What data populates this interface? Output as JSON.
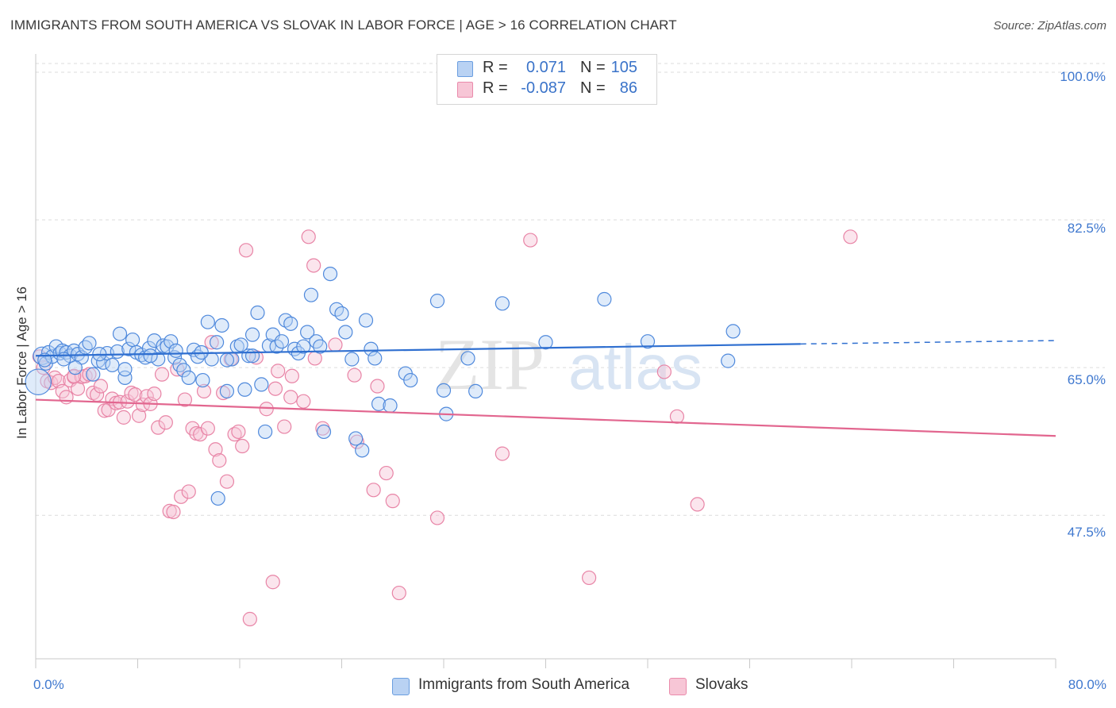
{
  "title": "IMMIGRANTS FROM SOUTH AMERICA VS SLOVAK IN LABOR FORCE | AGE > 16 CORRELATION CHART",
  "source": "Source: ZipAtlas.com",
  "watermark": {
    "zip": "ZIP",
    "atlas": "atlas"
  },
  "legend_top": {
    "series1": {
      "r_label": "R =",
      "r_value": "0.071",
      "n_label": "N =",
      "n_value": "105"
    },
    "series2": {
      "r_label": "R =",
      "r_value": "-0.087",
      "n_label": "N =",
      "n_value": "86"
    }
  },
  "legend_bottom": {
    "series1": "Immigrants from South America",
    "series2": "Slovaks"
  },
  "colors": {
    "blue": "#4f89dc",
    "blue_fill": "#b9d2f3",
    "blue_line": "#2f6fd0",
    "pink": "#e884a6",
    "pink_fill": "#f7c6d6",
    "pink_line": "#e2668f",
    "grid": "#dcdcdc",
    "tick_text": "#3f78cf"
  },
  "chart_data": {
    "type": "scatter",
    "title": "IMMIGRANTS FROM SOUTH AMERICA VS SLOVAK IN LABOR FORCE | AGE > 16 CORRELATION CHART",
    "xlabel": "",
    "ylabel": "In Labor Force | Age > 16",
    "xlim": [
      0,
      80
    ],
    "ylim": [
      30.5,
      101.5
    ],
    "x_tick_labels": [
      "0.0%",
      "80.0%"
    ],
    "y_ticks": [
      100.0,
      82.5,
      65.0,
      47.5
    ],
    "y_tick_labels": [
      "100.0%",
      "82.5%",
      "65.0%",
      "47.5%"
    ],
    "grid": true,
    "legend": "top-center",
    "series": [
      {
        "name": "Immigrants from South America",
        "r": 0.071,
        "n": 105,
        "trend": {
          "x": [
            0,
            60
          ],
          "y": [
            66.4,
            67.8
          ],
          "dashed_to": [
            80,
            68.2
          ]
        },
        "points": [
          [
            0.2,
            63.3,
            1.9
          ],
          [
            0.5,
            66.4,
            1.3
          ],
          [
            0.8,
            65.5,
            1
          ],
          [
            1.0,
            66.8,
            1
          ],
          [
            1.3,
            66.3,
            1
          ],
          [
            1.6,
            67.5,
            1
          ],
          [
            1.9,
            66.7,
            1
          ],
          [
            2.1,
            67.0,
            1
          ],
          [
            2.4,
            66.8,
            1
          ],
          [
            2.7,
            66.4,
            1
          ],
          [
            3.0,
            67.0,
            1
          ],
          [
            3.3,
            66.6,
            1
          ],
          [
            3.6,
            66.2,
            1
          ],
          [
            3.9,
            67.4,
            1
          ],
          [
            4.2,
            67.9,
            1
          ],
          [
            4.5,
            64.2,
            1
          ],
          [
            4.9,
            65.8,
            1
          ],
          [
            5.3,
            65.6,
            1
          ],
          [
            5.6,
            66.7,
            1
          ],
          [
            6.0,
            65.3,
            1
          ],
          [
            6.4,
            66.9,
            1
          ],
          [
            6.6,
            69.0,
            1
          ],
          [
            7.0,
            63.8,
            1
          ],
          [
            7.3,
            67.2,
            1
          ],
          [
            7.6,
            68.3,
            1
          ],
          [
            7.9,
            66.8,
            1
          ],
          [
            8.3,
            66.5,
            1
          ],
          [
            8.6,
            66.2,
            1
          ],
          [
            8.9,
            67.3,
            1
          ],
          [
            9.3,
            68.2,
            1
          ],
          [
            9.6,
            66.0,
            1
          ],
          [
            10.0,
            67.6,
            1
          ],
          [
            10.3,
            67.5,
            1
          ],
          [
            10.6,
            68.1,
            1
          ],
          [
            10.9,
            66.2,
            1
          ],
          [
            11.3,
            65.3,
            1
          ],
          [
            11.6,
            64.7,
            1
          ],
          [
            12.0,
            63.8,
            1
          ],
          [
            12.4,
            67.1,
            1
          ],
          [
            12.7,
            66.3,
            1
          ],
          [
            13.1,
            63.5,
            1
          ],
          [
            13.5,
            70.4,
            1
          ],
          [
            13.8,
            66.0,
            1
          ],
          [
            14.2,
            68.0,
            1
          ],
          [
            14.6,
            70.0,
            1
          ],
          [
            15.0,
            62.2,
            1
          ],
          [
            15.4,
            66.0,
            1
          ],
          [
            15.8,
            67.5,
            1
          ],
          [
            16.1,
            67.7,
            1
          ],
          [
            16.4,
            62.4,
            1
          ],
          [
            16.7,
            66.4,
            1
          ],
          [
            17.0,
            68.9,
            1
          ],
          [
            17.4,
            71.5,
            1
          ],
          [
            17.7,
            63.0,
            1
          ],
          [
            18.0,
            57.4,
            1
          ],
          [
            18.3,
            67.6,
            1
          ],
          [
            18.6,
            68.9,
            1
          ],
          [
            18.9,
            67.5,
            1
          ],
          [
            19.3,
            68.1,
            1
          ],
          [
            19.6,
            70.6,
            1
          ],
          [
            20.0,
            70.2,
            1
          ],
          [
            20.3,
            67.2,
            1
          ],
          [
            20.6,
            66.7,
            1
          ],
          [
            21.0,
            67.5,
            1
          ],
          [
            21.3,
            69.2,
            1
          ],
          [
            21.6,
            73.6,
            1
          ],
          [
            22.0,
            68.1,
            1
          ],
          [
            22.3,
            67.5,
            1
          ],
          [
            22.6,
            57.4,
            1
          ],
          [
            23.1,
            76.1,
            1
          ],
          [
            23.6,
            71.9,
            1
          ],
          [
            24.0,
            71.4,
            1
          ],
          [
            24.3,
            69.2,
            1
          ],
          [
            24.8,
            66.0,
            1
          ],
          [
            25.1,
            56.6,
            1
          ],
          [
            25.6,
            55.2,
            1
          ],
          [
            25.9,
            70.6,
            1
          ],
          [
            26.3,
            67.2,
            1
          ],
          [
            26.6,
            66.1,
            1
          ],
          [
            26.9,
            60.7,
            1
          ],
          [
            27.8,
            60.5,
            1
          ],
          [
            29.0,
            64.3,
            1
          ],
          [
            29.4,
            63.5,
            1
          ],
          [
            31.5,
            72.9,
            1
          ],
          [
            32.0,
            62.3,
            1
          ],
          [
            32.2,
            59.5,
            1
          ],
          [
            33.9,
            66.1,
            1
          ],
          [
            34.5,
            62.2,
            1
          ],
          [
            36.6,
            72.6,
            1
          ],
          [
            40.0,
            68.0,
            1
          ],
          [
            44.6,
            73.1,
            1
          ],
          [
            48.0,
            68.1,
            1
          ],
          [
            54.3,
            65.8,
            1
          ],
          [
            54.7,
            69.3,
            1
          ],
          [
            7.0,
            64.8,
            1
          ],
          [
            9.0,
            66.4,
            1
          ],
          [
            11.0,
            67.0,
            1
          ],
          [
            13.0,
            66.8,
            1
          ],
          [
            15.0,
            65.9,
            1
          ],
          [
            17.0,
            66.4,
            1
          ],
          [
            3.1,
            65.0,
            1
          ],
          [
            5.0,
            66.6,
            1
          ],
          [
            14.3,
            49.5,
            1
          ],
          [
            2.2,
            66.0,
            1
          ],
          [
            0.7,
            65.9,
            1
          ]
        ]
      },
      {
        "name": "Slovaks",
        "r": -0.087,
        "n": 86,
        "trend": {
          "x": [
            0,
            80
          ],
          "y": [
            61.2,
            56.9
          ]
        },
        "points": [
          [
            0.3,
            66.3,
            1
          ],
          [
            0.6,
            65.0,
            1
          ],
          [
            0.9,
            63.4,
            1
          ],
          [
            1.2,
            63.2,
            1
          ],
          [
            1.5,
            63.8,
            1
          ],
          [
            1.8,
            63.4,
            1
          ],
          [
            2.1,
            62.2,
            1
          ],
          [
            2.4,
            61.5,
            1
          ],
          [
            2.7,
            63.5,
            1
          ],
          [
            3.0,
            63.9,
            1
          ],
          [
            3.3,
            62.5,
            1
          ],
          [
            3.6,
            63.9,
            1
          ],
          [
            3.9,
            64.0,
            1
          ],
          [
            4.2,
            64.2,
            1
          ],
          [
            4.5,
            62.0,
            1
          ],
          [
            4.8,
            61.8,
            1
          ],
          [
            5.1,
            62.8,
            1
          ],
          [
            5.4,
            59.9,
            1
          ],
          [
            5.7,
            60.0,
            1
          ],
          [
            6.0,
            61.3,
            1
          ],
          [
            6.3,
            60.8,
            1
          ],
          [
            6.6,
            60.9,
            1
          ],
          [
            6.9,
            59.1,
            1
          ],
          [
            7.2,
            61.0,
            1
          ],
          [
            7.5,
            62.0,
            1
          ],
          [
            7.8,
            61.8,
            1
          ],
          [
            8.1,
            59.3,
            1
          ],
          [
            8.4,
            60.6,
            1
          ],
          [
            8.7,
            61.6,
            1
          ],
          [
            9.0,
            60.7,
            1
          ],
          [
            9.3,
            61.9,
            1
          ],
          [
            9.6,
            57.9,
            1
          ],
          [
            9.9,
            64.2,
            1
          ],
          [
            10.2,
            58.5,
            1
          ],
          [
            10.5,
            48.0,
            1
          ],
          [
            10.8,
            47.9,
            1
          ],
          [
            11.1,
            64.8,
            1
          ],
          [
            11.4,
            49.7,
            1
          ],
          [
            11.7,
            61.2,
            1
          ],
          [
            12.0,
            50.3,
            1
          ],
          [
            12.3,
            57.8,
            1
          ],
          [
            12.6,
            57.2,
            1
          ],
          [
            12.9,
            57.1,
            1
          ],
          [
            13.2,
            62.2,
            1
          ],
          [
            13.5,
            57.8,
            1
          ],
          [
            13.8,
            68.0,
            1
          ],
          [
            14.1,
            55.3,
            1
          ],
          [
            14.4,
            54.0,
            1
          ],
          [
            14.7,
            62.0,
            1
          ],
          [
            15.0,
            51.5,
            1
          ],
          [
            15.3,
            66.0,
            1
          ],
          [
            15.6,
            57.1,
            1
          ],
          [
            15.9,
            57.4,
            1
          ],
          [
            16.2,
            55.7,
            1
          ],
          [
            16.5,
            78.9,
            1
          ],
          [
            16.8,
            35.2,
            1
          ],
          [
            17.3,
            66.2,
            1
          ],
          [
            18.1,
            60.1,
            1
          ],
          [
            18.6,
            39.6,
            1
          ],
          [
            19.0,
            64.6,
            1
          ],
          [
            19.5,
            58.0,
            1
          ],
          [
            20.1,
            64.0,
            1
          ],
          [
            21.0,
            61.0,
            1
          ],
          [
            21.4,
            80.5,
            1
          ],
          [
            21.8,
            77.1,
            1
          ],
          [
            22.5,
            57.8,
            1
          ],
          [
            23.5,
            67.7,
            1
          ],
          [
            25.2,
            56.2,
            1
          ],
          [
            26.5,
            50.5,
            1
          ],
          [
            26.8,
            62.8,
            1
          ],
          [
            27.5,
            52.5,
            1
          ],
          [
            28.0,
            49.2,
            1
          ],
          [
            28.5,
            38.3,
            1
          ],
          [
            31.5,
            47.2,
            1
          ],
          [
            36.6,
            54.8,
            1
          ],
          [
            38.8,
            80.1,
            1
          ],
          [
            43.4,
            40.1,
            1
          ],
          [
            49.3,
            64.5,
            1
          ],
          [
            50.3,
            59.2,
            1
          ],
          [
            51.9,
            48.8,
            1
          ],
          [
            63.9,
            80.5,
            1
          ],
          [
            21.9,
            66.1,
            1
          ],
          [
            25.0,
            64.1,
            1
          ],
          [
            3.0,
            64.0,
            1
          ],
          [
            18.8,
            62.5,
            1
          ],
          [
            20.0,
            61.5,
            1
          ]
        ]
      }
    ]
  }
}
